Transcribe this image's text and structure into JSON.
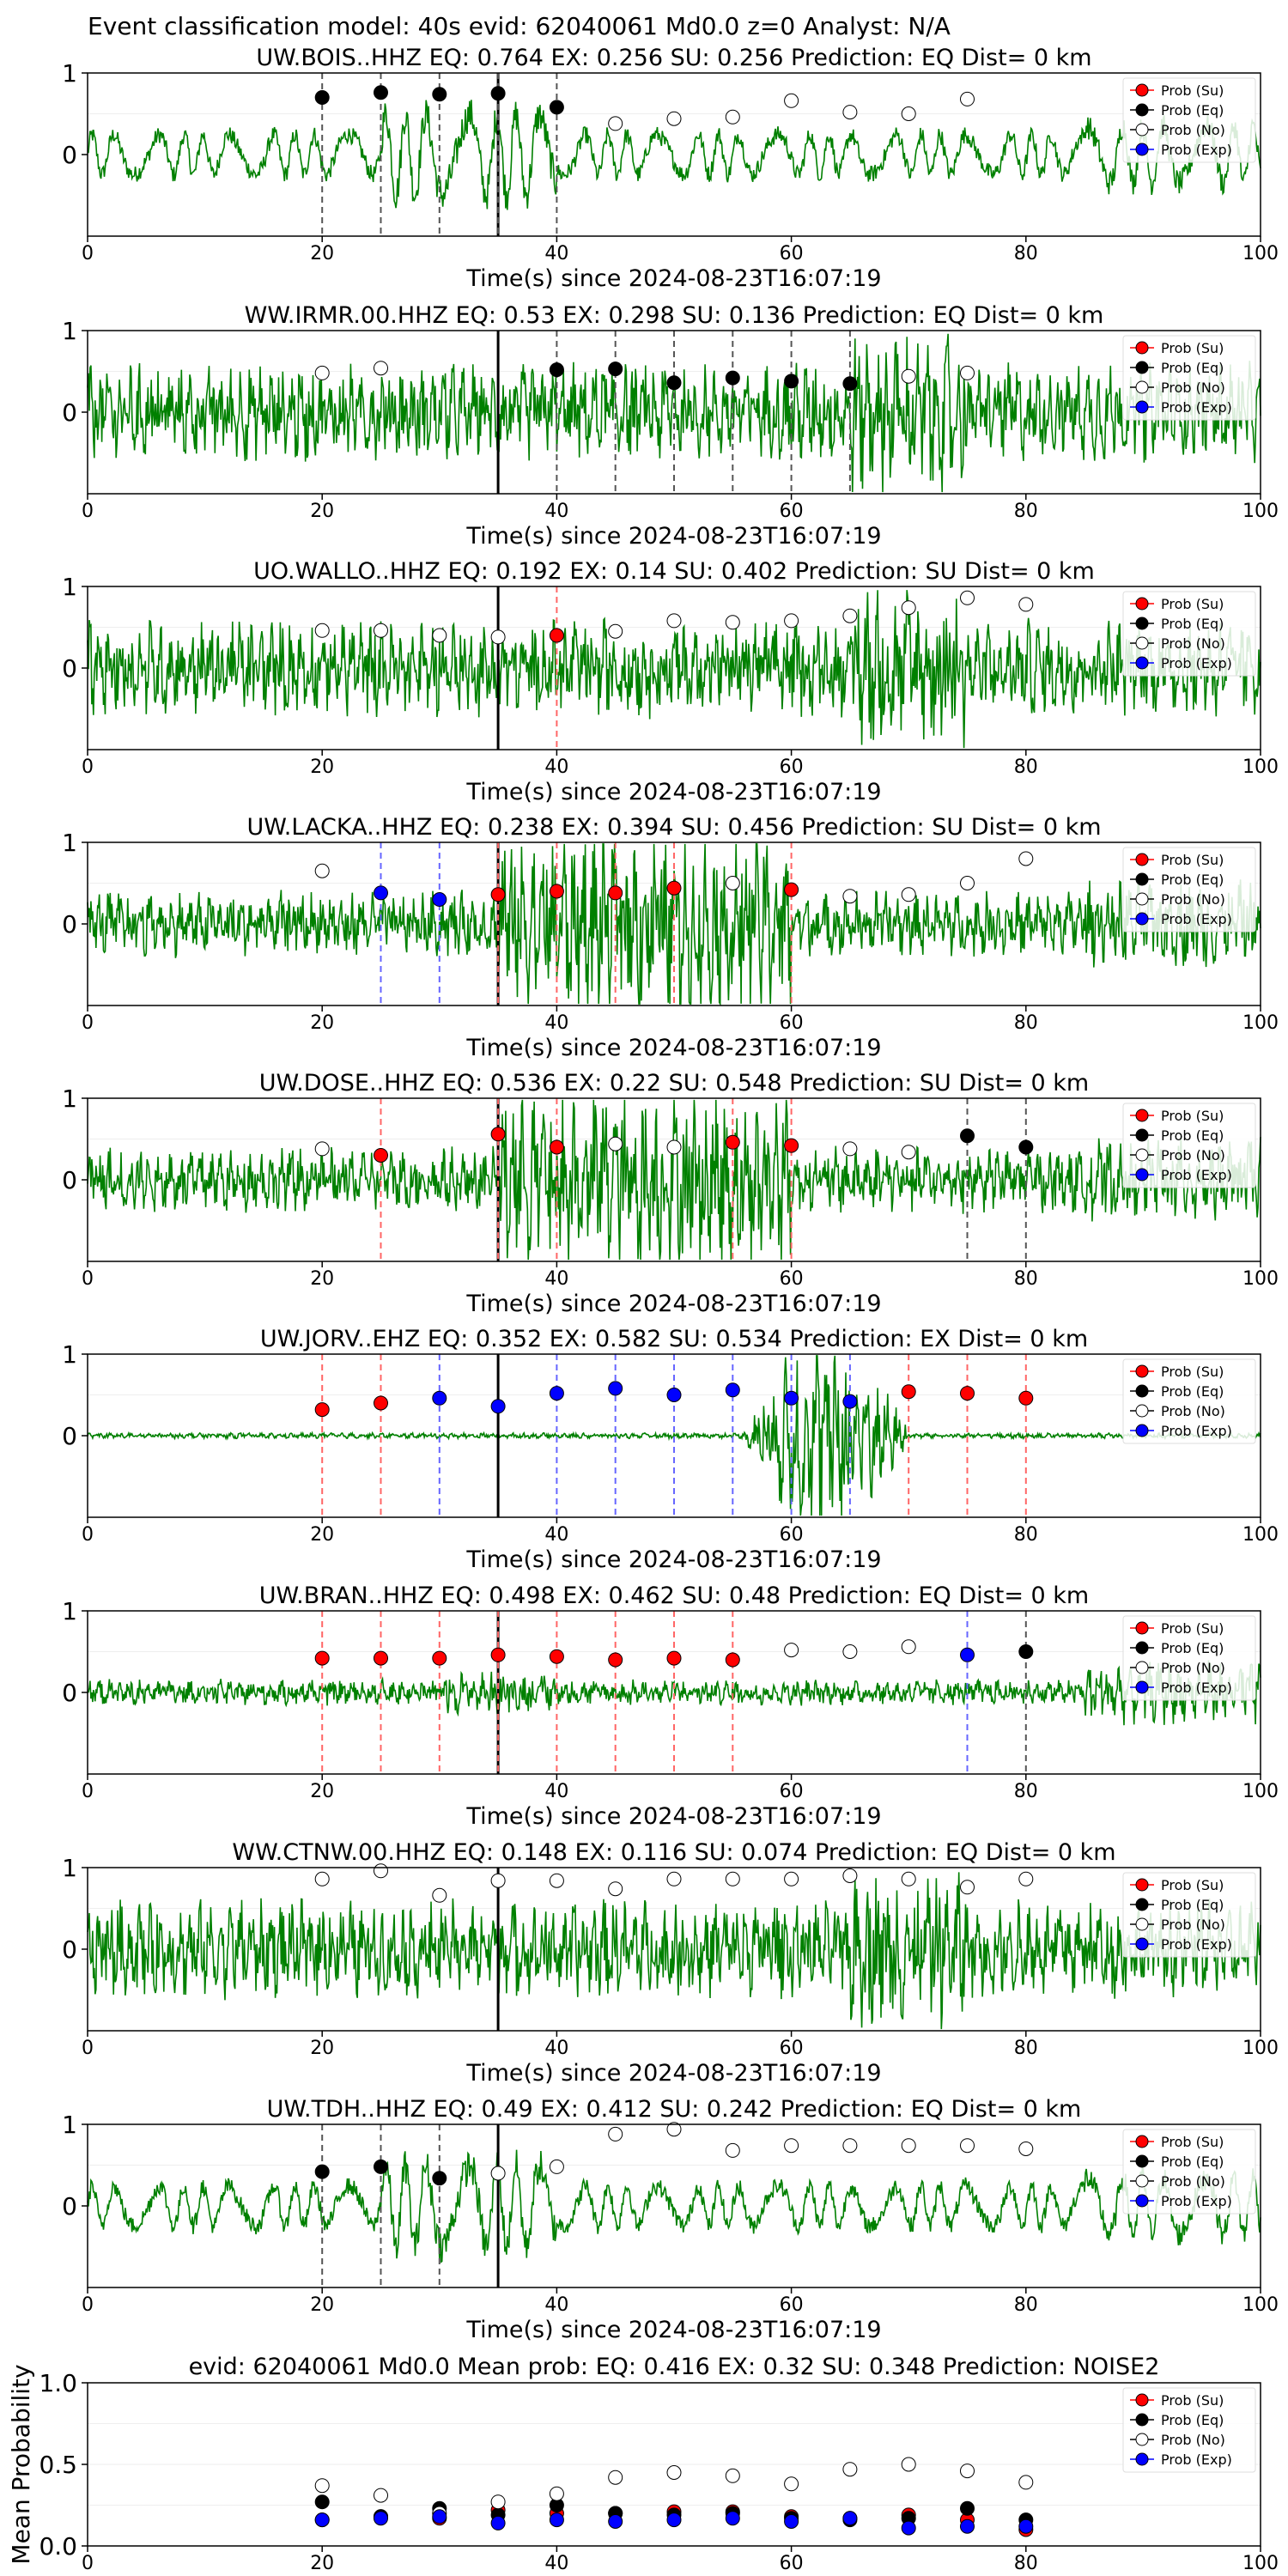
{
  "figure": {
    "suptitle": "Event classification model: 40s evid: 62040061 Md0.0 z=0 Analyst: N/A"
  },
  "legend_labels": [
    "Prob (Su)",
    "Prob (Eq)",
    "Prob (No)",
    "Prob (Exp)"
  ],
  "colors": {
    "su": "#ff0000",
    "eq": "#000000",
    "no": "#ffffff",
    "exp": "#0000ff",
    "trace": "#008000",
    "su_line": "#ff6666",
    "eq_line": "#555555",
    "exp_line": "#6666ff"
  },
  "chart_data": [
    {
      "type": "line",
      "title": "UW.BOIS..HHZ   EQ: 0.764  EX: 0.256  SU: 0.256   Prediction: EQ    Dist= 0 km",
      "xlabel": "Time(s) since 2024-08-23T16:07:19",
      "xlim": [
        0,
        100
      ],
      "ylim": [
        -1,
        1
      ],
      "yticks": [
        "0",
        "1"
      ],
      "xticks": [
        "0",
        "20",
        "40",
        "60",
        "80",
        "100"
      ],
      "pick_time": 35,
      "trace_style": "lowfreq",
      "points": [
        {
          "t": 20,
          "p": 0.7,
          "c": "eq",
          "line": "eq"
        },
        {
          "t": 25,
          "p": 0.76,
          "c": "eq",
          "line": "eq"
        },
        {
          "t": 30,
          "p": 0.74,
          "c": "eq",
          "line": "eq"
        },
        {
          "t": 35,
          "p": 0.75,
          "c": "eq",
          "line": "eq"
        },
        {
          "t": 40,
          "p": 0.58,
          "c": "eq",
          "line": "eq"
        },
        {
          "t": 45,
          "p": 0.38,
          "c": "no"
        },
        {
          "t": 50,
          "p": 0.44,
          "c": "no"
        },
        {
          "t": 55,
          "p": 0.46,
          "c": "no"
        },
        {
          "t": 60,
          "p": 0.66,
          "c": "no"
        },
        {
          "t": 65,
          "p": 0.52,
          "c": "no"
        },
        {
          "t": 70,
          "p": 0.5,
          "c": "no"
        },
        {
          "t": 75,
          "p": 0.68,
          "c": "no"
        }
      ]
    },
    {
      "type": "line",
      "title": "WW.IRMR.00.HHZ   EQ: 0.53  EX: 0.298  SU: 0.136   Prediction: EQ    Dist= 0 km",
      "xlabel": "Time(s) since 2024-08-23T16:07:19",
      "xlim": [
        0,
        100
      ],
      "ylim": [
        -1,
        1
      ],
      "yticks": [
        "0",
        "1"
      ],
      "xticks": [
        "0",
        "20",
        "40",
        "60",
        "80",
        "100"
      ],
      "pick_time": 35,
      "trace_style": "dense",
      "points": [
        {
          "t": 20,
          "p": 0.48,
          "c": "no"
        },
        {
          "t": 25,
          "p": 0.54,
          "c": "no"
        },
        {
          "t": 40,
          "p": 0.52,
          "c": "eq",
          "line": "eq"
        },
        {
          "t": 45,
          "p": 0.53,
          "c": "eq",
          "line": "eq"
        },
        {
          "t": 50,
          "p": 0.36,
          "c": "eq",
          "line": "eq"
        },
        {
          "t": 55,
          "p": 0.42,
          "c": "eq",
          "line": "eq"
        },
        {
          "t": 60,
          "p": 0.38,
          "c": "eq",
          "line": "eq"
        },
        {
          "t": 65,
          "p": 0.35,
          "c": "eq",
          "line": "eq"
        },
        {
          "t": 70,
          "p": 0.44,
          "c": "no"
        },
        {
          "t": 75,
          "p": 0.48,
          "c": "no"
        }
      ]
    },
    {
      "type": "line",
      "title": "UO.WALLO..HHZ   EQ: 0.192  EX: 0.14  SU: 0.402   Prediction: SU    Dist= 0 km",
      "xlabel": "Time(s) since 2024-08-23T16:07:19",
      "xlim": [
        0,
        100
      ],
      "ylim": [
        -1,
        1
      ],
      "yticks": [
        "0",
        "1"
      ],
      "xticks": [
        "0",
        "20",
        "40",
        "60",
        "80",
        "100"
      ],
      "pick_time": 35,
      "trace_style": "dense",
      "points": [
        {
          "t": 20,
          "p": 0.46,
          "c": "no"
        },
        {
          "t": 25,
          "p": 0.46,
          "c": "no"
        },
        {
          "t": 30,
          "p": 0.4,
          "c": "no"
        },
        {
          "t": 35,
          "p": 0.38,
          "c": "no"
        },
        {
          "t": 40,
          "p": 0.4,
          "c": "su",
          "line": "su"
        },
        {
          "t": 45,
          "p": 0.45,
          "c": "no"
        },
        {
          "t": 50,
          "p": 0.58,
          "c": "no"
        },
        {
          "t": 55,
          "p": 0.56,
          "c": "no"
        },
        {
          "t": 60,
          "p": 0.58,
          "c": "no"
        },
        {
          "t": 65,
          "p": 0.64,
          "c": "no"
        },
        {
          "t": 70,
          "p": 0.74,
          "c": "no"
        },
        {
          "t": 75,
          "p": 0.86,
          "c": "no"
        },
        {
          "t": 80,
          "p": 0.78,
          "c": "no"
        }
      ]
    },
    {
      "type": "line",
      "title": "UW.LACKA..HHZ   EQ: 0.238  EX: 0.394  SU: 0.456   Prediction: SU    Dist= 0 km",
      "xlabel": "Time(s) since 2024-08-23T16:07:19",
      "xlim": [
        0,
        100
      ],
      "ylim": [
        -1,
        1
      ],
      "yticks": [
        "0",
        "1"
      ],
      "xticks": [
        "0",
        "20",
        "40",
        "60",
        "80",
        "100"
      ],
      "pick_time": 35,
      "trace_style": "burst",
      "points": [
        {
          "t": 20,
          "p": 0.65,
          "c": "no"
        },
        {
          "t": 25,
          "p": 0.38,
          "c": "exp",
          "line": "exp"
        },
        {
          "t": 30,
          "p": 0.3,
          "c": "exp",
          "line": "exp"
        },
        {
          "t": 35,
          "p": 0.36,
          "c": "su",
          "line": "su"
        },
        {
          "t": 40,
          "p": 0.4,
          "c": "su",
          "line": "su"
        },
        {
          "t": 45,
          "p": 0.38,
          "c": "su",
          "line": "su"
        },
        {
          "t": 50,
          "p": 0.44,
          "c": "su",
          "line": "su"
        },
        {
          "t": 55,
          "p": 0.5,
          "c": "no"
        },
        {
          "t": 60,
          "p": 0.42,
          "c": "su",
          "line": "su"
        },
        {
          "t": 65,
          "p": 0.34,
          "c": "no"
        },
        {
          "t": 70,
          "p": 0.36,
          "c": "no"
        },
        {
          "t": 75,
          "p": 0.5,
          "c": "no"
        },
        {
          "t": 80,
          "p": 0.8,
          "c": "no"
        }
      ]
    },
    {
      "type": "line",
      "title": "UW.DOSE..HHZ   EQ: 0.536  EX: 0.22  SU: 0.548   Prediction: SU    Dist= 0 km",
      "xlabel": "Time(s) since 2024-08-23T16:07:19",
      "xlim": [
        0,
        100
      ],
      "ylim": [
        -1,
        1
      ],
      "yticks": [
        "0",
        "1"
      ],
      "xticks": [
        "0",
        "20",
        "40",
        "60",
        "80",
        "100"
      ],
      "pick_time": 35,
      "trace_style": "burst",
      "points": [
        {
          "t": 20,
          "p": 0.38,
          "c": "no"
        },
        {
          "t": 25,
          "p": 0.3,
          "c": "su",
          "line": "su"
        },
        {
          "t": 35,
          "p": 0.56,
          "c": "su",
          "line": "su"
        },
        {
          "t": 40,
          "p": 0.4,
          "c": "su",
          "line": "su"
        },
        {
          "t": 45,
          "p": 0.44,
          "c": "no"
        },
        {
          "t": 50,
          "p": 0.4,
          "c": "no"
        },
        {
          "t": 55,
          "p": 0.46,
          "c": "su",
          "line": "su"
        },
        {
          "t": 60,
          "p": 0.42,
          "c": "su",
          "line": "su"
        },
        {
          "t": 65,
          "p": 0.38,
          "c": "no"
        },
        {
          "t": 70,
          "p": 0.34,
          "c": "no"
        },
        {
          "t": 75,
          "p": 0.54,
          "c": "eq",
          "line": "eq"
        },
        {
          "t": 80,
          "p": 0.4,
          "c": "eq",
          "line": "eq"
        }
      ]
    },
    {
      "type": "line",
      "title": "UW.JORV..EHZ   EQ: 0.352  EX: 0.582  SU: 0.534   Prediction: EX    Dist= 0 km",
      "xlabel": "Time(s) since 2024-08-23T16:07:19",
      "xlim": [
        0,
        100
      ],
      "ylim": [
        -1,
        1
      ],
      "yticks": [
        "0",
        "1"
      ],
      "xticks": [
        "0",
        "20",
        "40",
        "60",
        "80",
        "100"
      ],
      "pick_time": 35,
      "trace_style": "late",
      "points": [
        {
          "t": 20,
          "p": 0.32,
          "c": "su",
          "line": "su"
        },
        {
          "t": 25,
          "p": 0.4,
          "c": "su",
          "line": "su"
        },
        {
          "t": 30,
          "p": 0.46,
          "c": "exp",
          "line": "exp"
        },
        {
          "t": 35,
          "p": 0.36,
          "c": "exp"
        },
        {
          "t": 40,
          "p": 0.52,
          "c": "exp",
          "line": "exp"
        },
        {
          "t": 45,
          "p": 0.58,
          "c": "exp",
          "line": "exp"
        },
        {
          "t": 50,
          "p": 0.5,
          "c": "exp",
          "line": "exp"
        },
        {
          "t": 55,
          "p": 0.56,
          "c": "exp",
          "line": "exp"
        },
        {
          "t": 60,
          "p": 0.46,
          "c": "exp",
          "line": "exp"
        },
        {
          "t": 65,
          "p": 0.42,
          "c": "exp",
          "line": "exp"
        },
        {
          "t": 70,
          "p": 0.54,
          "c": "su",
          "line": "su"
        },
        {
          "t": 75,
          "p": 0.52,
          "c": "su",
          "line": "su"
        },
        {
          "t": 80,
          "p": 0.46,
          "c": "su",
          "line": "su"
        }
      ]
    },
    {
      "type": "line",
      "title": "UW.BRAN..HHZ   EQ: 0.498  EX: 0.462  SU: 0.48   Prediction: EQ    Dist= 0 km",
      "xlabel": "Time(s) since 2024-08-23T16:07:19",
      "xlim": [
        0,
        100
      ],
      "ylim": [
        -1,
        1
      ],
      "yticks": [
        "0",
        "1"
      ],
      "xticks": [
        "0",
        "20",
        "40",
        "60",
        "80",
        "100"
      ],
      "pick_time": 35,
      "trace_style": "quiet",
      "points": [
        {
          "t": 20,
          "p": 0.42,
          "c": "su",
          "line": "su"
        },
        {
          "t": 25,
          "p": 0.42,
          "c": "su",
          "line": "su"
        },
        {
          "t": 30,
          "p": 0.42,
          "c": "su",
          "line": "su"
        },
        {
          "t": 35,
          "p": 0.46,
          "c": "su",
          "line": "su"
        },
        {
          "t": 40,
          "p": 0.44,
          "c": "su",
          "line": "su"
        },
        {
          "t": 45,
          "p": 0.4,
          "c": "su",
          "line": "su"
        },
        {
          "t": 50,
          "p": 0.42,
          "c": "su",
          "line": "su"
        },
        {
          "t": 55,
          "p": 0.4,
          "c": "su",
          "line": "su"
        },
        {
          "t": 60,
          "p": 0.52,
          "c": "no"
        },
        {
          "t": 65,
          "p": 0.5,
          "c": "no"
        },
        {
          "t": 70,
          "p": 0.56,
          "c": "no"
        },
        {
          "t": 75,
          "p": 0.46,
          "c": "exp",
          "line": "exp"
        },
        {
          "t": 80,
          "p": 0.5,
          "c": "eq",
          "line": "eq"
        }
      ]
    },
    {
      "type": "line",
      "title": "WW.CTNW.00.HHZ   EQ: 0.148  EX: 0.116  SU: 0.074   Prediction: EQ    Dist= 0 km",
      "xlabel": "Time(s) since 2024-08-23T16:07:19",
      "xlim": [
        0,
        100
      ],
      "ylim": [
        -1,
        1
      ],
      "yticks": [
        "0",
        "1"
      ],
      "xticks": [
        "0",
        "20",
        "40",
        "60",
        "80",
        "100"
      ],
      "pick_time": 35,
      "trace_style": "dense",
      "points": [
        {
          "t": 20,
          "p": 0.86,
          "c": "no"
        },
        {
          "t": 25,
          "p": 0.96,
          "c": "no"
        },
        {
          "t": 30,
          "p": 0.66,
          "c": "no"
        },
        {
          "t": 35,
          "p": 0.84,
          "c": "no"
        },
        {
          "t": 40,
          "p": 0.84,
          "c": "no"
        },
        {
          "t": 45,
          "p": 0.74,
          "c": "no"
        },
        {
          "t": 50,
          "p": 0.86,
          "c": "no"
        },
        {
          "t": 55,
          "p": 0.86,
          "c": "no"
        },
        {
          "t": 60,
          "p": 0.86,
          "c": "no"
        },
        {
          "t": 65,
          "p": 0.9,
          "c": "no"
        },
        {
          "t": 70,
          "p": 0.86,
          "c": "no"
        },
        {
          "t": 75,
          "p": 0.76,
          "c": "no"
        },
        {
          "t": 80,
          "p": 0.86,
          "c": "no"
        }
      ]
    },
    {
      "type": "line",
      "title": "UW.TDH..HHZ   EQ: 0.49  EX: 0.412  SU: 0.242   Prediction: EQ    Dist= 0 km",
      "xlabel": "Time(s) since 2024-08-23T16:07:19",
      "xlim": [
        0,
        100
      ],
      "ylim": [
        -1,
        1
      ],
      "yticks": [
        "0",
        "1"
      ],
      "xticks": [
        "0",
        "20",
        "40",
        "60",
        "80",
        "100"
      ],
      "pick_time": 35,
      "trace_style": "lowfreq",
      "points": [
        {
          "t": 20,
          "p": 0.42,
          "c": "eq",
          "line": "eq"
        },
        {
          "t": 25,
          "p": 0.48,
          "c": "eq",
          "line": "eq"
        },
        {
          "t": 30,
          "p": 0.34,
          "c": "eq",
          "line": "eq"
        },
        {
          "t": 35,
          "p": 0.4,
          "c": "no"
        },
        {
          "t": 40,
          "p": 0.48,
          "c": "no"
        },
        {
          "t": 45,
          "p": 0.88,
          "c": "no"
        },
        {
          "t": 50,
          "p": 0.94,
          "c": "no"
        },
        {
          "t": 55,
          "p": 0.68,
          "c": "no"
        },
        {
          "t": 60,
          "p": 0.74,
          "c": "no"
        },
        {
          "t": 65,
          "p": 0.74,
          "c": "no"
        },
        {
          "t": 70,
          "p": 0.74,
          "c": "no"
        },
        {
          "t": 75,
          "p": 0.74,
          "c": "no"
        },
        {
          "t": 80,
          "p": 0.7,
          "c": "no"
        }
      ]
    },
    {
      "type": "scatter",
      "title": "evid: 62040061  Md0.0   Mean prob:    EQ: 0.416  EX: 0.32  SU: 0.348   Prediction: NOISE2",
      "ylabel": "Mean Probability",
      "xlim": [
        0,
        100
      ],
      "ylim": [
        0,
        1
      ],
      "yticks": [
        "0.0",
        "0.5",
        "1.0"
      ],
      "xticks": [
        "0",
        "20",
        "40",
        "60",
        "80",
        "100"
      ],
      "x": [
        20,
        25,
        30,
        35,
        40,
        45,
        50,
        55,
        60,
        65,
        70,
        75,
        80
      ],
      "series": [
        {
          "name": "Prob (Su)",
          "key": "su",
          "values": [
            0.16,
            0.18,
            0.17,
            0.22,
            0.2,
            0.2,
            0.21,
            0.21,
            0.18,
            0.17,
            0.19,
            0.16,
            0.1
          ]
        },
        {
          "name": "Prob (Eq)",
          "key": "eq",
          "values": [
            0.27,
            0.18,
            0.23,
            0.19,
            0.25,
            0.2,
            0.19,
            0.2,
            0.17,
            0.16,
            0.17,
            0.23,
            0.16
          ]
        },
        {
          "name": "Prob (No)",
          "key": "no",
          "values": [
            0.37,
            0.31,
            0.2,
            0.27,
            0.32,
            0.42,
            0.45,
            0.43,
            0.38,
            0.47,
            0.5,
            0.46,
            0.39
          ]
        },
        {
          "name": "Prob (Exp)",
          "key": "exp",
          "values": [
            0.16,
            0.17,
            0.18,
            0.14,
            0.16,
            0.15,
            0.16,
            0.17,
            0.15,
            0.17,
            0.11,
            0.12,
            0.12
          ]
        }
      ]
    }
  ]
}
